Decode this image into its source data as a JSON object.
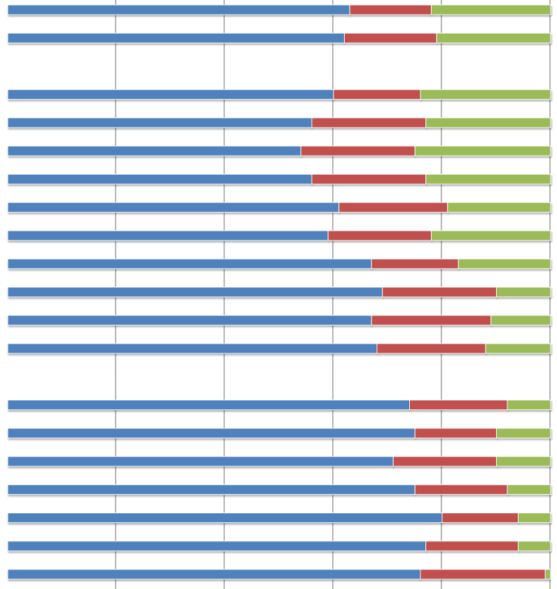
{
  "chart_data": {
    "type": "bar",
    "orientation": "horizontal",
    "stacked": "percent",
    "xlim": [
      0,
      100
    ],
    "grid": true,
    "legend": "none",
    "colors": [
      "#4F81BD",
      "#C0504D",
      "#9BBB59"
    ],
    "series": [
      {
        "values": [
          63.0,
          62.0,
          60.0,
          56.0,
          54.0,
          56.0,
          61.0,
          59.0,
          67.0,
          69.0,
          67.0,
          68.0,
          74.0,
          75.0,
          71.0,
          75.0,
          80.0,
          77.0,
          76.0
        ]
      },
      {
        "values": [
          15.0,
          17.0,
          16.0,
          21.0,
          21.0,
          21.0,
          20.0,
          19.0,
          16.0,
          21.0,
          22.0,
          20.0,
          18.0,
          15.0,
          19.0,
          17.0,
          14.0,
          17.0,
          23.0
        ]
      },
      {
        "values": [
          22.0,
          21.0,
          24.0,
          23.0,
          25.0,
          23.0,
          19.0,
          22.0,
          17.0,
          10.0,
          11.0,
          12.0,
          8.0,
          10.0,
          10.0,
          8.0,
          6.0,
          6.0,
          1.0
        ]
      }
    ],
    "rows": [
      0,
      1,
      3,
      4,
      5,
      6,
      7,
      8,
      9,
      10,
      11,
      12,
      14,
      15,
      16,
      17,
      18,
      19,
      20
    ]
  }
}
